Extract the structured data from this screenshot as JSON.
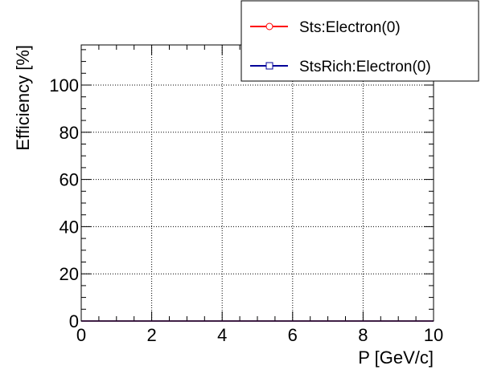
{
  "chart_data": {
    "type": "line",
    "xlabel": "P [GeV/c]",
    "ylabel": "Efficiency [%]",
    "xlim": [
      0,
      10
    ],
    "ylim": [
      0,
      117
    ],
    "x_ticks": [
      "0",
      "2",
      "4",
      "6",
      "8",
      "10"
    ],
    "y_ticks": [
      "0",
      "20",
      "40",
      "60",
      "80",
      "100"
    ],
    "grid": true,
    "legend_position": "top-right",
    "series": [
      {
        "name": "Sts:Electron(0)",
        "color": "#ff0000",
        "marker": "open-circle",
        "x": [
          0,
          10
        ],
        "y": [
          0,
          0
        ]
      },
      {
        "name": "StsRich:Electron(0)",
        "color": "#000099",
        "marker": "open-square",
        "x": [
          0,
          10
        ],
        "y": [
          0,
          0
        ]
      }
    ]
  }
}
